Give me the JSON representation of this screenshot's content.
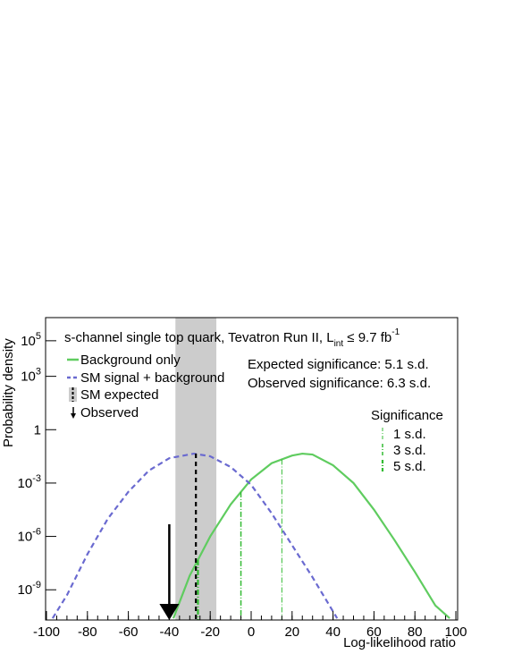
{
  "chart_data": {
    "type": "line",
    "title": "s-channel single top quark, Tevatron Run II, L",
    "title_sub": "int",
    "title_rest": " ≤ 9.7 fb",
    "title_sup": "-1",
    "x_label": "Log-likelihood ratio",
    "y_label": "Probability density",
    "xlim": [
      -100,
      100
    ],
    "xticks": [
      -100,
      -80,
      -60,
      -40,
      -20,
      0,
      20,
      40,
      60,
      80,
      100
    ],
    "ylim": [
      2e-11,
      2000000
    ],
    "log_y": true,
    "yticks": [
      {
        "value": 1e-09,
        "label": "10",
        "sup": "-9"
      },
      {
        "value": 1e-06,
        "label": "10",
        "sup": "-6"
      },
      {
        "value": 0.001,
        "label": "10",
        "sup": "-3"
      },
      1,
      {
        "value": 1000,
        "label": "10",
        "sup": "3"
      },
      {
        "value": 100000,
        "label": "10",
        "sup": "5"
      }
    ],
    "series": [
      {
        "name": "Background only",
        "color": "#5fcc5f",
        "dash": "solid",
        "x": [
          -38,
          -30,
          -20,
          -10,
          0,
          10,
          20,
          25,
          30,
          40,
          50,
          60,
          70,
          80,
          90,
          97
        ],
        "values": [
          2.5e-11,
          6.3e-09,
          1e-06,
          6.3e-05,
          0.0016,
          0.013,
          0.035,
          0.045,
          0.04,
          0.01,
          0.001,
          3.2e-05,
          6.3e-07,
          1e-08,
          1.3e-10,
          2.5e-11
        ]
      },
      {
        "name": "SM signal + background",
        "color": "#6a6ad0",
        "dash": "dashed",
        "x": [
          -97,
          -90,
          -80,
          -70,
          -60,
          -50,
          -40,
          -28,
          -20,
          -10,
          0,
          10,
          20,
          30,
          42
        ],
        "values": [
          2.5e-11,
          5e-10,
          1e-07,
          1e-05,
          0.00032,
          0.005,
          0.025,
          0.045,
          0.032,
          0.008,
          0.0008,
          2e-05,
          3.2e-07,
          5e-09,
          2.5e-11
        ]
      }
    ],
    "sm_expected": {
      "name": "SM expected",
      "center": -27,
      "range": [
        -37,
        -17
      ],
      "color": "#cccccc"
    },
    "observed": {
      "name": "Observed",
      "value": -40
    },
    "annotations": [
      "Expected significance: 5.1 s.d.",
      "Observed significance: 6.3 s.d."
    ],
    "significance": {
      "title": "Significance",
      "color": "#33bb33",
      "lines": [
        {
          "name": "1 s.d.",
          "x": 15,
          "width": 1
        },
        {
          "name": "3 s.d.",
          "x": -5,
          "width": 1.5
        },
        {
          "name": "5 s.d.",
          "x": -26,
          "width": 2.2
        }
      ]
    }
  }
}
